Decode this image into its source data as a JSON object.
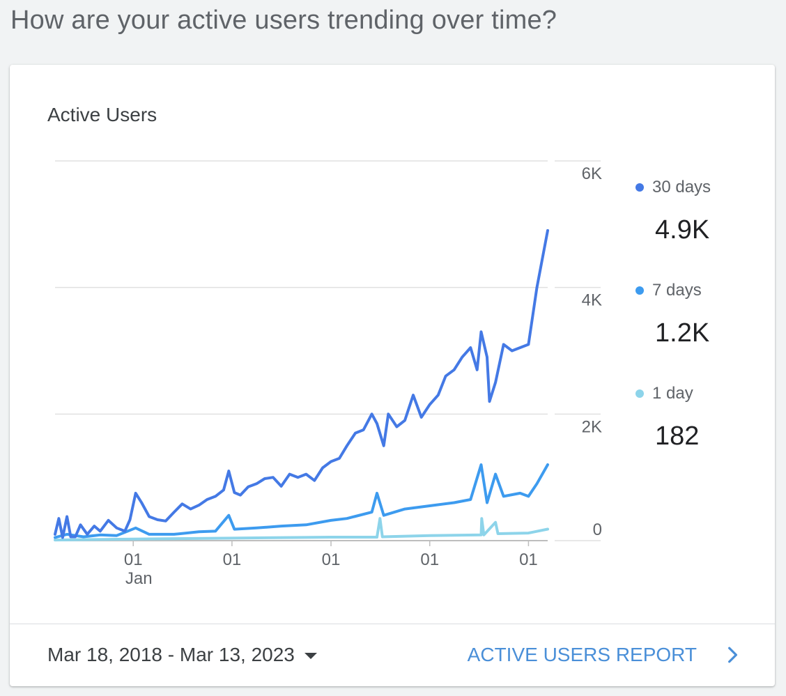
{
  "page": {
    "heading": "How are your active users trending over time?"
  },
  "card": {
    "title": "Active Users"
  },
  "legend": [
    {
      "label": "30 days",
      "value": "4.9K",
      "color": "#4479e5"
    },
    {
      "label": "7 days",
      "value": "1.2K",
      "color": "#3d9bef"
    },
    {
      "label": "1 day",
      "value": "182",
      "color": "#8dd4ea"
    }
  ],
  "footer": {
    "date_range": "Mar 18, 2018 - Mar 13, 2023",
    "report_link": "ACTIVE USERS REPORT"
  },
  "chart_data": {
    "type": "line",
    "ylim": [
      0,
      6000
    ],
    "yticks": [
      0,
      2000,
      4000,
      6000
    ],
    "ytick_labels": [
      "0",
      "2K",
      "4K",
      "6K"
    ],
    "x_range": [
      "2018-03-18",
      "2023-03-13"
    ],
    "xticks": [
      {
        "date": "2019-01-01",
        "label": "01",
        "sublabel": "Jan"
      },
      {
        "date": "2020-01-01",
        "label": "01",
        "sublabel": ""
      },
      {
        "date": "2021-01-01",
        "label": "01",
        "sublabel": ""
      },
      {
        "date": "2022-01-01",
        "label": "01",
        "sublabel": ""
      },
      {
        "date": "2023-01-01",
        "label": "01",
        "sublabel": ""
      }
    ],
    "grid": true,
    "legend_position": "right",
    "series": [
      {
        "name": "30 days",
        "color": "#4479e5",
        "points": [
          [
            "2018-03-18",
            100
          ],
          [
            "2018-04-01",
            350
          ],
          [
            "2018-04-15",
            50
          ],
          [
            "2018-05-01",
            380
          ],
          [
            "2018-05-15",
            60
          ],
          [
            "2018-06-01",
            60
          ],
          [
            "2018-06-20",
            250
          ],
          [
            "2018-07-15",
            100
          ],
          [
            "2018-08-10",
            230
          ],
          [
            "2018-09-01",
            150
          ],
          [
            "2018-10-01",
            320
          ],
          [
            "2018-11-01",
            200
          ],
          [
            "2018-12-01",
            150
          ],
          [
            "2018-12-20",
            330
          ],
          [
            "2019-01-10",
            750
          ],
          [
            "2019-02-01",
            600
          ],
          [
            "2019-03-01",
            380
          ],
          [
            "2019-04-01",
            330
          ],
          [
            "2019-05-01",
            310
          ],
          [
            "2019-06-01",
            450
          ],
          [
            "2019-07-01",
            580
          ],
          [
            "2019-08-01",
            500
          ],
          [
            "2019-09-01",
            560
          ],
          [
            "2019-10-01",
            650
          ],
          [
            "2019-11-01",
            700
          ],
          [
            "2019-12-01",
            800
          ],
          [
            "2019-12-20",
            1100
          ],
          [
            "2020-01-10",
            760
          ],
          [
            "2020-02-01",
            720
          ],
          [
            "2020-03-01",
            850
          ],
          [
            "2020-04-01",
            900
          ],
          [
            "2020-05-01",
            980
          ],
          [
            "2020-06-01",
            1000
          ],
          [
            "2020-07-01",
            860
          ],
          [
            "2020-08-01",
            1050
          ],
          [
            "2020-09-01",
            1000
          ],
          [
            "2020-10-01",
            1050
          ],
          [
            "2020-11-01",
            950
          ],
          [
            "2020-12-01",
            1150
          ],
          [
            "2021-01-01",
            1250
          ],
          [
            "2021-02-01",
            1300
          ],
          [
            "2021-03-01",
            1500
          ],
          [
            "2021-04-01",
            1700
          ],
          [
            "2021-05-01",
            1750
          ],
          [
            "2021-06-01",
            2000
          ],
          [
            "2021-06-20",
            1850
          ],
          [
            "2021-07-15",
            1500
          ],
          [
            "2021-08-01",
            2000
          ],
          [
            "2021-09-01",
            1800
          ],
          [
            "2021-10-01",
            1900
          ],
          [
            "2021-11-01",
            2300
          ],
          [
            "2021-12-01",
            1950
          ],
          [
            "2022-01-01",
            2150
          ],
          [
            "2022-02-01",
            2300
          ],
          [
            "2022-03-01",
            2600
          ],
          [
            "2022-04-01",
            2700
          ],
          [
            "2022-05-01",
            2900
          ],
          [
            "2022-06-01",
            3050
          ],
          [
            "2022-06-25",
            2700
          ],
          [
            "2022-07-10",
            3300
          ],
          [
            "2022-08-01",
            2900
          ],
          [
            "2022-08-10",
            2200
          ],
          [
            "2022-09-01",
            2500
          ],
          [
            "2022-10-01",
            3100
          ],
          [
            "2022-11-01",
            3000
          ],
          [
            "2022-12-01",
            3050
          ],
          [
            "2023-01-01",
            3100
          ],
          [
            "2023-02-01",
            4000
          ],
          [
            "2023-03-13",
            4900
          ]
        ]
      },
      {
        "name": "7 days",
        "color": "#3d9bef",
        "points": [
          [
            "2018-03-18",
            50
          ],
          [
            "2018-05-01",
            100
          ],
          [
            "2018-07-01",
            60
          ],
          [
            "2018-09-01",
            90
          ],
          [
            "2018-11-01",
            80
          ],
          [
            "2019-01-10",
            200
          ],
          [
            "2019-03-01",
            100
          ],
          [
            "2019-06-01",
            100
          ],
          [
            "2019-09-01",
            140
          ],
          [
            "2019-11-01",
            150
          ],
          [
            "2019-12-20",
            400
          ],
          [
            "2020-01-10",
            180
          ],
          [
            "2020-04-01",
            200
          ],
          [
            "2020-07-01",
            230
          ],
          [
            "2020-10-01",
            250
          ],
          [
            "2021-01-01",
            320
          ],
          [
            "2021-03-01",
            350
          ],
          [
            "2021-06-01",
            450
          ],
          [
            "2021-06-20",
            750
          ],
          [
            "2021-07-15",
            400
          ],
          [
            "2021-10-01",
            500
          ],
          [
            "2022-01-01",
            550
          ],
          [
            "2022-04-01",
            600
          ],
          [
            "2022-06-01",
            650
          ],
          [
            "2022-07-10",
            1200
          ],
          [
            "2022-08-01",
            600
          ],
          [
            "2022-09-01",
            1050
          ],
          [
            "2022-10-01",
            700
          ],
          [
            "2022-12-01",
            750
          ],
          [
            "2023-01-01",
            700
          ],
          [
            "2023-02-01",
            900
          ],
          [
            "2023-03-13",
            1200
          ]
        ]
      },
      {
        "name": "1 day",
        "color": "#8dd4ea",
        "points": [
          [
            "2018-03-18",
            10
          ],
          [
            "2019-01-01",
            25
          ],
          [
            "2020-01-01",
            40
          ],
          [
            "2021-01-01",
            55
          ],
          [
            "2021-06-20",
            55
          ],
          [
            "2021-07-01",
            350
          ],
          [
            "2021-07-10",
            60
          ],
          [
            "2022-01-01",
            80
          ],
          [
            "2022-07-10",
            90
          ],
          [
            "2022-07-12",
            350
          ],
          [
            "2022-07-20",
            90
          ],
          [
            "2022-09-01",
            290
          ],
          [
            "2022-09-10",
            110
          ],
          [
            "2023-01-01",
            120
          ],
          [
            "2023-03-13",
            182
          ]
        ]
      }
    ]
  }
}
